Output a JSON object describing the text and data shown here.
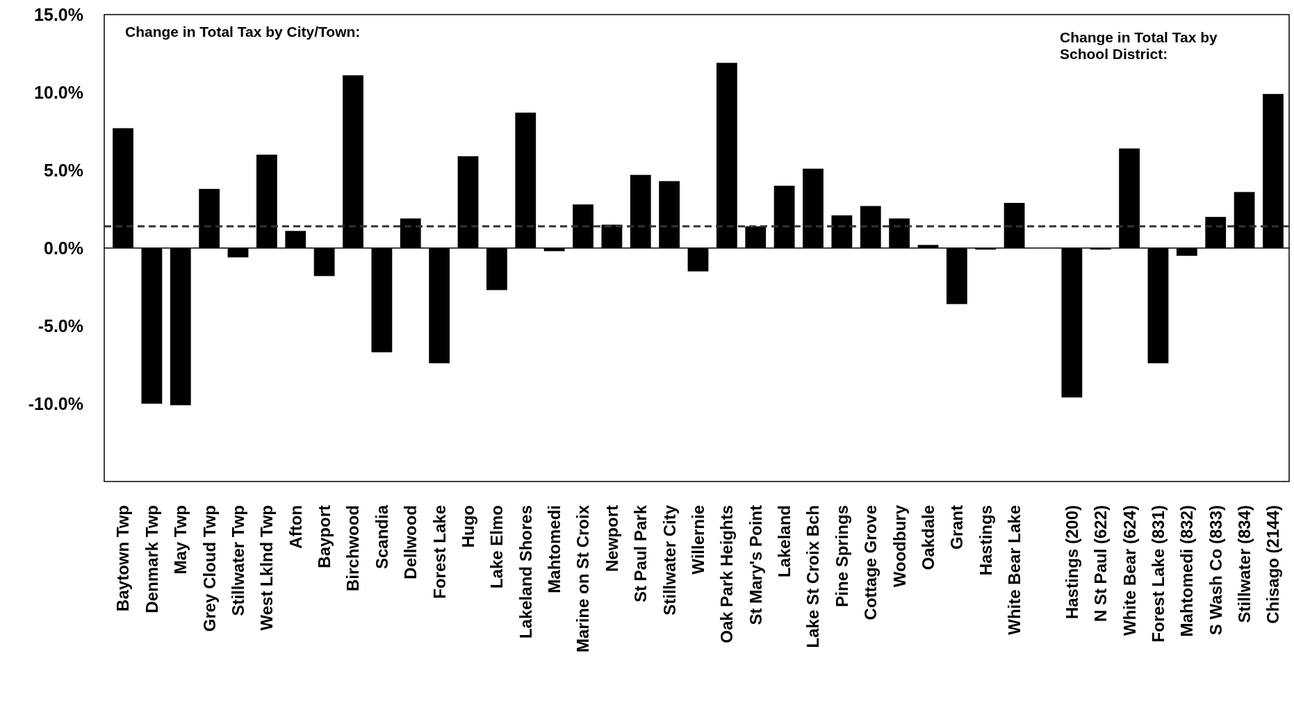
{
  "chart_data": {
    "type": "bar",
    "categories": [
      "Baytown Twp",
      "Denmark Twp",
      "May Twp",
      "Grey Cloud Twp",
      "Stillwater Twp",
      "West Lklnd Twp",
      "Afton",
      "Bayport",
      "Birchwood",
      "Scandia",
      "Dellwood",
      "Forest Lake",
      "Hugo",
      "Lake Elmo",
      "Lakeland Shores",
      "Mahtomedi",
      "Marine on St Croix",
      "Newport",
      "St Paul Park",
      "Stillwater City",
      "Willernie",
      "Oak Park Heights",
      "St Mary's Point",
      "Lakeland",
      "Lake St Croix Bch",
      "Pine Springs",
      "Cottage Grove",
      "Woodbury",
      "Oakdale",
      "Grant",
      "Hastings",
      "White Bear Lake",
      null,
      "Hastings (200)",
      "N St Paul (622)",
      "White Bear (624)",
      "Forest Lake (831)",
      "Mahtomedi (832)",
      "S Wash Co (833)",
      "Stillwater (834)",
      "Chisago (2144)"
    ],
    "values": [
      7.7,
      -10.0,
      -10.1,
      3.8,
      -0.6,
      6.0,
      1.1,
      -1.8,
      11.1,
      -6.7,
      1.9,
      -7.4,
      5.9,
      -2.7,
      8.7,
      -0.2,
      2.8,
      1.5,
      4.7,
      4.3,
      -1.5,
      11.9,
      1.4,
      4.0,
      5.1,
      2.1,
      2.7,
      1.9,
      0.2,
      -3.6,
      -0.1,
      2.9,
      null,
      -9.6,
      -0.1,
      6.4,
      -7.4,
      -0.5,
      2.0,
      3.6,
      9.9
    ],
    "color": "#000000",
    "ylim": [
      -15,
      15
    ],
    "yticks": [
      {
        "value": -15,
        "label": null
      },
      {
        "value": -10,
        "label": "-10.0%"
      },
      {
        "value": -5,
        "label": "-5.0%"
      },
      {
        "value": 0,
        "label": "0.0%"
      },
      {
        "value": 5,
        "label": "5.0%"
      },
      {
        "value": 10,
        "label": "10.0%"
      },
      {
        "value": 15,
        "label": "15.0%"
      }
    ],
    "ref_lines": [
      {
        "axis": "y",
        "value": 1.4,
        "line_style": "dashed",
        "color": "#333333"
      }
    ],
    "annotations": [
      "Change in Total Tax by City/Town:",
      "Change in Total Tax by School District:"
    ]
  }
}
